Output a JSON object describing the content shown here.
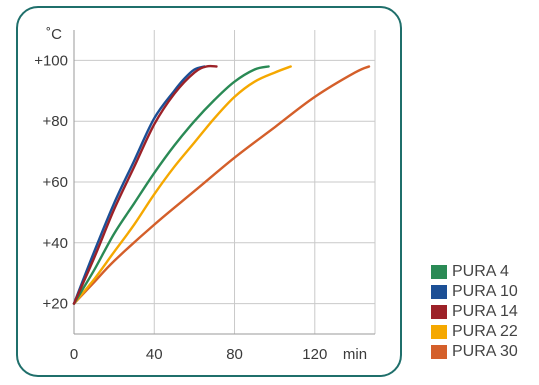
{
  "chart_data": {
    "type": "line",
    "ylabel": "˚C",
    "xlabel": "min",
    "xlim": [
      0,
      150
    ],
    "ylim": [
      10,
      110
    ],
    "x_ticks": [
      0,
      40,
      80,
      120
    ],
    "x_tick_labels": [
      "0",
      "40",
      "80",
      "120"
    ],
    "y_ticks": [
      20,
      40,
      60,
      80,
      100
    ],
    "y_tick_labels": [
      "+20",
      "+40",
      "+60",
      "+80",
      "+100"
    ],
    "grid": true,
    "legend_position": "outside-bottom-right",
    "series": [
      {
        "name": "PURA 4",
        "color": "#2a8a55",
        "points": [
          [
            0,
            20
          ],
          [
            10,
            31
          ],
          [
            20,
            43
          ],
          [
            30,
            53
          ],
          [
            40,
            63
          ],
          [
            50,
            72
          ],
          [
            60,
            80
          ],
          [
            70,
            87
          ],
          [
            80,
            93
          ],
          [
            90,
            97
          ],
          [
            97,
            98
          ]
        ]
      },
      {
        "name": "PURA 10",
        "color": "#1c4f95",
        "points": [
          [
            0,
            20
          ],
          [
            10,
            37
          ],
          [
            20,
            53
          ],
          [
            30,
            67
          ],
          [
            40,
            81
          ],
          [
            50,
            90
          ],
          [
            55,
            94
          ],
          [
            60,
            97
          ],
          [
            65,
            98
          ]
        ]
      },
      {
        "name": "PURA 14",
        "color": "#9c2128",
        "points": [
          [
            0,
            20
          ],
          [
            10,
            35
          ],
          [
            20,
            51
          ],
          [
            30,
            65
          ],
          [
            40,
            79
          ],
          [
            50,
            89
          ],
          [
            60,
            96
          ],
          [
            66,
            98
          ],
          [
            71,
            98
          ]
        ]
      },
      {
        "name": "PURA 22",
        "color": "#f5a800",
        "points": [
          [
            0,
            20
          ],
          [
            10,
            28
          ],
          [
            20,
            37
          ],
          [
            30,
            46
          ],
          [
            40,
            56
          ],
          [
            50,
            65
          ],
          [
            60,
            73
          ],
          [
            70,
            81
          ],
          [
            80,
            88
          ],
          [
            90,
            93
          ],
          [
            100,
            96
          ],
          [
            108,
            98
          ]
        ]
      },
      {
        "name": "PURA 30",
        "color": "#d45f2a",
        "points": [
          [
            0,
            20
          ],
          [
            10,
            27
          ],
          [
            20,
            34
          ],
          [
            40,
            46
          ],
          [
            60,
            57
          ],
          [
            80,
            68
          ],
          [
            100,
            78
          ],
          [
            120,
            88
          ],
          [
            140,
            96
          ],
          [
            147,
            98
          ]
        ]
      }
    ]
  }
}
